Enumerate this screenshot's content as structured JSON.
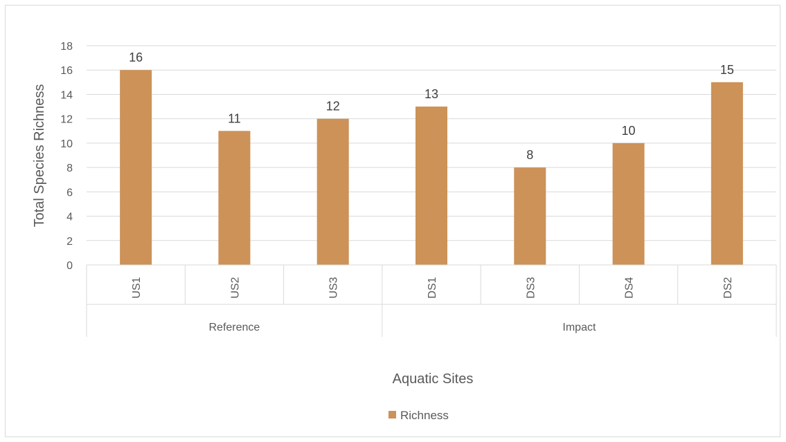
{
  "chart_data": {
    "type": "bar",
    "categories": [
      "US1",
      "US2",
      "US3",
      "DS1",
      "DS3",
      "DS4",
      "DS2"
    ],
    "groups": [
      {
        "label": "Reference",
        "categories": [
          "US1",
          "US2",
          "US3"
        ]
      },
      {
        "label": "Impact",
        "categories": [
          "DS1",
          "DS3",
          "DS4",
          "DS2"
        ]
      }
    ],
    "series": [
      {
        "name": "Richness",
        "values": [
          16,
          11,
          12,
          13,
          8,
          10,
          15
        ],
        "color": "#cc9258"
      }
    ],
    "xlabel": "Aquatic Sites",
    "ylabel": "Total Species Richness",
    "ylim": [
      0,
      18
    ],
    "yticks": [
      0,
      2,
      4,
      6,
      8,
      10,
      12,
      14,
      16,
      18
    ],
    "grid": true,
    "data_labels": true,
    "legend_position": "bottom",
    "colors": {
      "bar": "#cc9258",
      "grid": "#d9d9d9",
      "text": "#595959"
    }
  }
}
